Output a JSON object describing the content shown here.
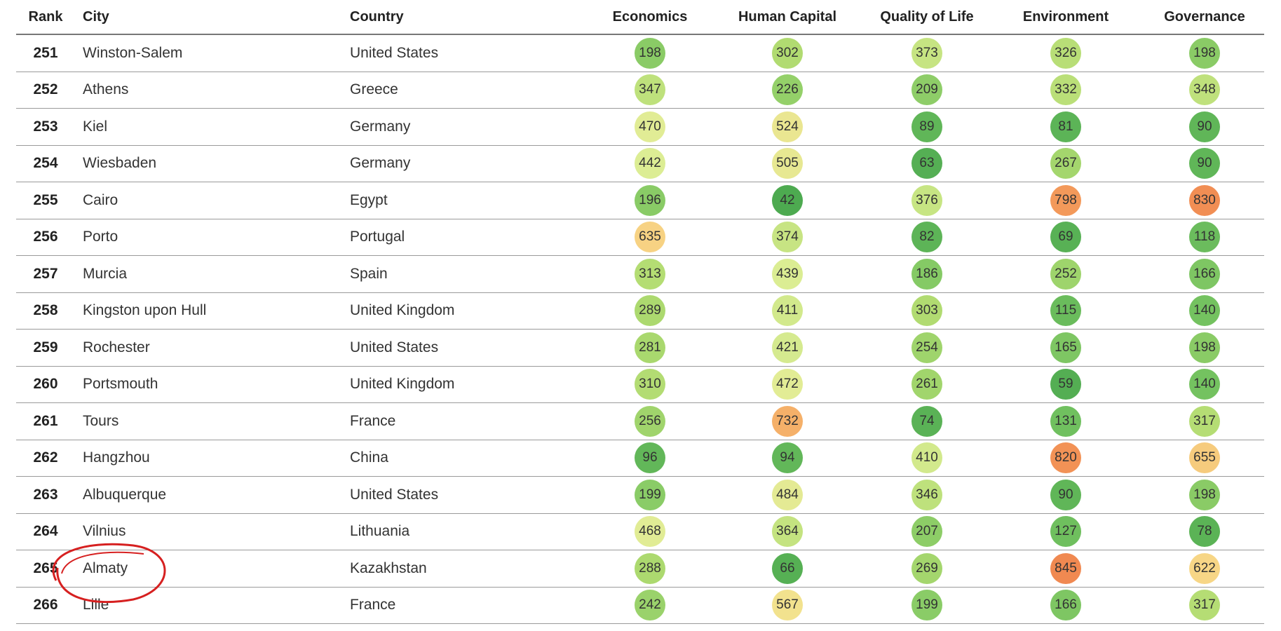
{
  "table": {
    "header": [
      "Rank",
      "City",
      "Country",
      "Economics",
      "Human Capital",
      "Quality of Life",
      "Environment",
      "Governance"
    ],
    "rows": [
      [
        251,
        "Winston-Salem",
        "United States",
        198,
        302,
        373,
        326,
        198
      ],
      [
        252,
        "Athens",
        "Greece",
        347,
        226,
        209,
        332,
        348
      ],
      [
        253,
        "Kiel",
        "Germany",
        470,
        524,
        89,
        81,
        90
      ],
      [
        254,
        "Wiesbaden",
        "Germany",
        442,
        505,
        63,
        267,
        90
      ],
      [
        255,
        "Cairo",
        "Egypt",
        196,
        42,
        376,
        798,
        830
      ],
      [
        256,
        "Porto",
        "Portugal",
        635,
        374,
        82,
        69,
        118
      ],
      [
        257,
        "Murcia",
        "Spain",
        313,
        439,
        186,
        252,
        166
      ],
      [
        258,
        "Kingston upon Hull",
        "United Kingdom",
        289,
        411,
        303,
        115,
        140
      ],
      [
        259,
        "Rochester",
        "United States",
        281,
        421,
        254,
        165,
        198
      ],
      [
        260,
        "Portsmouth",
        "United Kingdom",
        310,
        472,
        261,
        59,
        140
      ],
      [
        261,
        "Tours",
        "France",
        256,
        732,
        74,
        131,
        317
      ],
      [
        262,
        "Hangzhou",
        "China",
        96,
        94,
        410,
        820,
        655
      ],
      [
        263,
        "Albuquerque",
        "United States",
        199,
        484,
        346,
        90,
        198
      ],
      [
        264,
        "Vilnius",
        "Lithuania",
        468,
        364,
        207,
        127,
        78
      ],
      [
        265,
        "Almaty",
        "Kazakhstan",
        288,
        66,
        269,
        845,
        622
      ],
      [
        266,
        "Lille",
        "France",
        242,
        567,
        199,
        166,
        317
      ]
    ]
  }
}
